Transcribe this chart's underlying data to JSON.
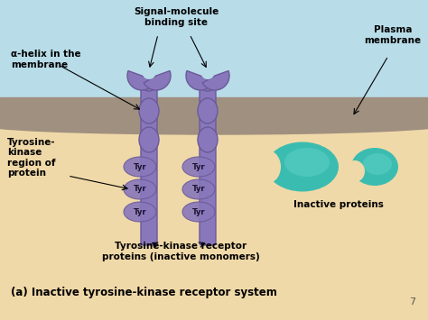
{
  "bg_sky_color": "#b8dce8",
  "bg_cell_color": "#f0d9a8",
  "membrane_color": "#a09080",
  "membrane_inner_color": "#b8a898",
  "receptor_color": "#8878bb",
  "receptor_dark": "#6a5a99",
  "receptor_light": "#9988cc",
  "tyr_color": "#8878bb",
  "protein_color": "#3bbcb0",
  "protein_light": "#60d0c8",
  "title_text": "(a) Inactive tyrosine-kinase receptor system",
  "label_alpha_helix": "α-helix in the\nmembrane",
  "label_signal": "Signal-molecule\nbinding site",
  "label_plasma": "Plasma\nmembrane",
  "label_tyrosine_kinase": "Tyrosine-\nkinase\nregion of\nprotein",
  "label_inactive_proteins": "Inactive proteins",
  "label_receptor_proteins": "Tyrosine-kinase receptor\nproteins (inactive monomers)",
  "page_number": "7",
  "figsize": [
    4.74,
    3.55
  ],
  "dpi": 100
}
